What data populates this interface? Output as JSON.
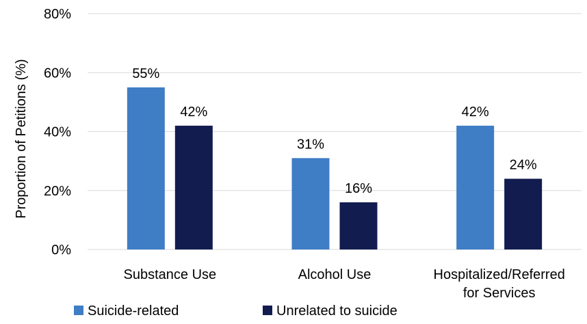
{
  "chart_data": {
    "type": "bar",
    "title": "",
    "xlabel": "",
    "ylabel": "Proportion of Petitions (%)",
    "ylim": [
      0,
      80
    ],
    "yticks": [
      0,
      20,
      40,
      60,
      80
    ],
    "ytick_labels": [
      "0%",
      "20%",
      "40%",
      "60%",
      "80%"
    ],
    "categories": [
      [
        "Substance Use"
      ],
      [
        "Alcohol Use"
      ],
      [
        "Hospitalized/Referred",
        "for Services"
      ]
    ],
    "series": [
      {
        "name": "Suicide-related",
        "color": "#3f7dc5",
        "values": [
          55,
          31,
          42
        ],
        "labels": [
          "55%",
          "31%",
          "42%"
        ]
      },
      {
        "name": "Unrelated to suicide",
        "color": "#121c4f",
        "values": [
          42,
          16,
          24
        ],
        "labels": [
          "42%",
          "16%",
          "24%"
        ]
      }
    ],
    "grid": true,
    "gridline_color": "#d9d9d9",
    "legend_position": "bottom-left"
  }
}
